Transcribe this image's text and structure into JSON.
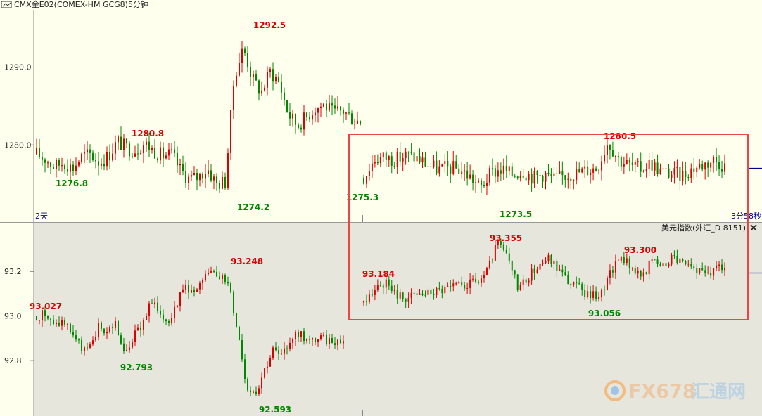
{
  "header": {
    "title": "CMX金E02(COMEX-HM GCG8)5分钟",
    "panel_icon": "chart-window-icon"
  },
  "bottom_panel": {
    "title": "美元指数(外汇_D 8151)",
    "close_icon": "close-icon"
  },
  "labels": {
    "left_period": "2天",
    "right_countdown": "3分58秒"
  },
  "watermark": {
    "text": "FX678",
    "cn": "汇通网",
    "logo_icon": "fx678-logo-icon"
  },
  "colors": {
    "up": "#dd0000",
    "down": "#008800",
    "highlight_box": "#ee4444",
    "bg_top": "#ffffee",
    "bg_bottom": "#e6e6dc"
  },
  "chart_data": [
    {
      "type": "candlestick",
      "name": "CMX金E02(COMEX-HM GCG8)5分钟",
      "ylim": [
        1271,
        1297
      ],
      "yticks": [
        1280.0,
        1290.0
      ],
      "ytick_labels": [
        "1280.0",
        "1290.0"
      ],
      "annotations": [
        {
          "text": "1276.8",
          "value": 1276.8,
          "kind": "low"
        },
        {
          "text": "1280.8",
          "value": 1280.8,
          "kind": "high"
        },
        {
          "text": "1274.2",
          "value": 1274.2,
          "kind": "low"
        },
        {
          "text": "1292.5",
          "value": 1292.5,
          "kind": "high"
        },
        {
          "text": "1275.3",
          "value": 1275.3,
          "kind": "low"
        },
        {
          "text": "1273.5",
          "value": 1273.5,
          "kind": "low"
        },
        {
          "text": "1280.5",
          "value": 1280.5,
          "kind": "high"
        }
      ],
      "session1_path": [
        1278.8,
        1278.2,
        1277.2,
        1277.8,
        1277.0,
        1278.5,
        1278.8,
        1277.8,
        1278.6,
        1280.5,
        1279.6,
        1279.4,
        1280.2,
        1279.3,
        1278.6,
        1278.8,
        1276.8,
        1275.6,
        1275.9,
        1277.0,
        1275.0,
        1275.3,
        1289.0,
        1292.5,
        1288.5,
        1286.8,
        1289.5,
        1288.0,
        1284.0,
        1282.5,
        1283.6,
        1284.8,
        1285.2,
        1284.0,
        1284.5,
        1283.5,
        1283.0
      ],
      "session2_path": [
        1275.8,
        1278.2,
        1278.4,
        1278.1,
        1278.7,
        1278.3,
        1277.5,
        1276.9,
        1277.1,
        1276.9,
        1275.9,
        1274.5,
        1276.4,
        1276.9,
        1276.2,
        1276.7,
        1275.8,
        1276.3,
        1275.6,
        1276.1,
        1276.4,
        1276.8,
        1277.1,
        1280.5,
        1278.2,
        1277.4,
        1276.9,
        1277.7,
        1276.6,
        1276.3,
        1276.1,
        1277.0,
        1277.5,
        1278.1,
        1277.3
      ]
    },
    {
      "type": "candlestick",
      "name": "美元指数(外汇_D 8151)",
      "ylim": [
        92.55,
        93.39
      ],
      "yticks": [
        92.8,
        93.0,
        93.2
      ],
      "ytick_labels": [
        "92.8",
        "93.0",
        "93.2"
      ],
      "annotations": [
        {
          "text": "93.027",
          "value": 93.027,
          "kind": "high"
        },
        {
          "text": "92.793",
          "value": 92.793,
          "kind": "low"
        },
        {
          "text": "93.248",
          "value": 93.248,
          "kind": "high"
        },
        {
          "text": "92.593",
          "value": 92.593,
          "kind": "low"
        },
        {
          "text": "93.184",
          "value": 93.184,
          "kind": "high"
        },
        {
          "text": "93.355",
          "value": 93.355,
          "kind": "high"
        },
        {
          "text": "93.056",
          "value": 93.056,
          "kind": "low"
        },
        {
          "text": "93.300",
          "value": 93.3,
          "kind": "high"
        }
      ],
      "session1_path": [
        93.0,
        93.01,
        92.95,
        92.98,
        92.93,
        92.86,
        92.84,
        92.95,
        92.93,
        92.97,
        92.82,
        92.9,
        92.96,
        93.06,
        93.02,
        92.98,
        93.06,
        93.14,
        93.1,
        93.15,
        93.22,
        93.18,
        93.13,
        92.92,
        92.68,
        92.66,
        92.76,
        92.85,
        92.81,
        92.9,
        92.93,
        92.88,
        92.9,
        92.89,
        92.89,
        92.89
      ],
      "session2_path": [
        93.06,
        93.12,
        93.15,
        93.1,
        93.08,
        93.09,
        93.1,
        93.11,
        93.12,
        93.13,
        93.14,
        93.15,
        93.2,
        93.33,
        93.25,
        93.13,
        93.18,
        93.23,
        93.26,
        93.2,
        93.15,
        93.12,
        93.09,
        93.1,
        93.2,
        93.27,
        93.22,
        93.18,
        93.25,
        93.22,
        93.27,
        93.24,
        93.21,
        93.19,
        93.2,
        93.22
      ]
    }
  ]
}
